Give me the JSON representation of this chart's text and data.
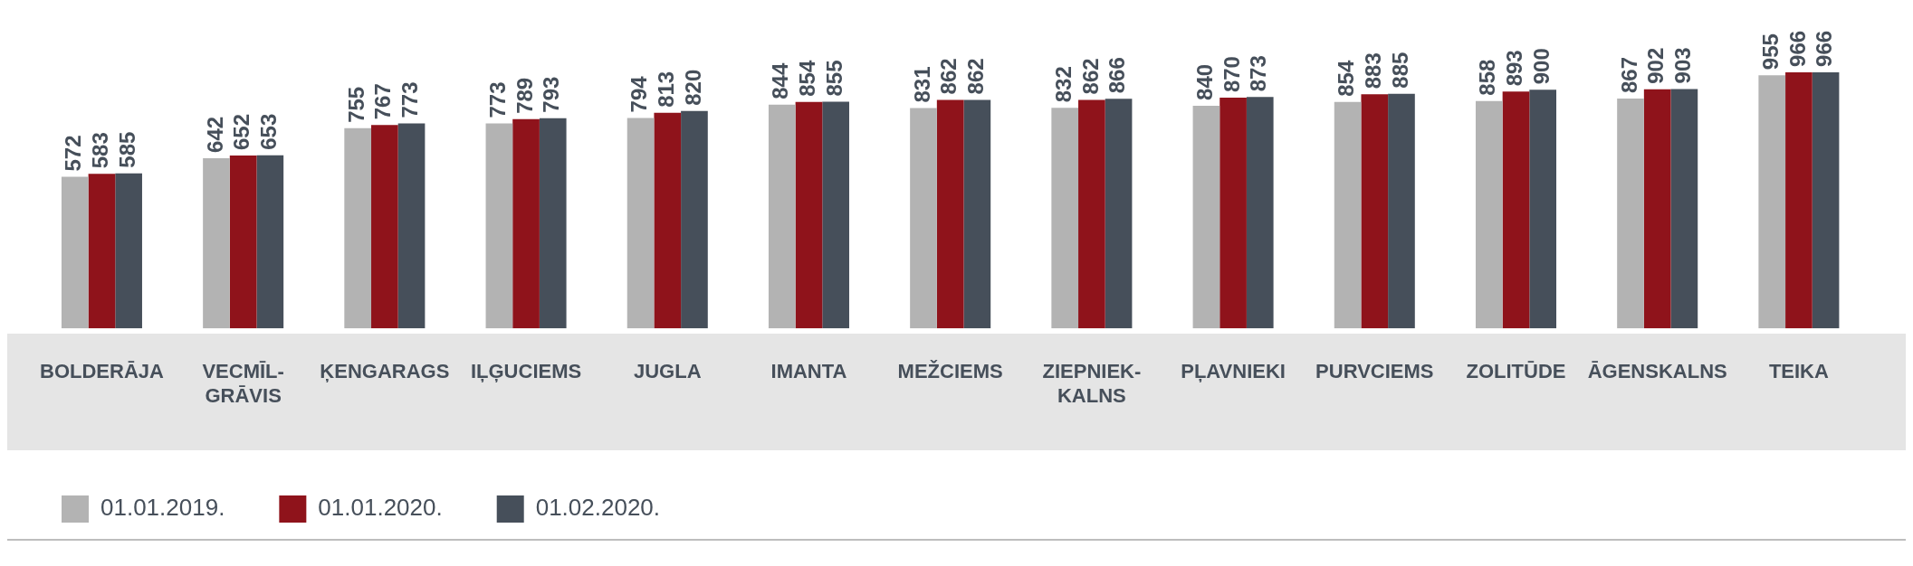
{
  "chart_data": {
    "type": "bar",
    "categories": [
      "BOLDERĀJA",
      "VECMĪL-GRĀVIS",
      "ĶENGARAGS",
      "IĻĢUCIEMS",
      "JUGLA",
      "IMANTA",
      "MEŽCIEMS",
      "ZIEPNIEK-KALNS",
      "PĻAVNIEKI",
      "PURVCIEMS",
      "ZOLITŪDE",
      "ĀGENSKALNS",
      "TEIKA"
    ],
    "series": [
      {
        "name": "01.01.2019.",
        "color": "#b3b3b3",
        "values": [
          572,
          642,
          755,
          773,
          794,
          844,
          831,
          832,
          840,
          854,
          858,
          867,
          955
        ]
      },
      {
        "name": "01.01.2020.",
        "color": "#8f131b",
        "values": [
          583,
          652,
          767,
          789,
          813,
          854,
          862,
          862,
          870,
          883,
          893,
          902,
          966
        ]
      },
      {
        "name": "01.02.2020.",
        "color": "#464f5a",
        "values": [
          585,
          653,
          773,
          793,
          820,
          855,
          862,
          866,
          873,
          885,
          900,
          903,
          966
        ]
      }
    ],
    "data_labels": true,
    "grid": false,
    "legend": "bottom left",
    "tick_labels": "x"
  }
}
